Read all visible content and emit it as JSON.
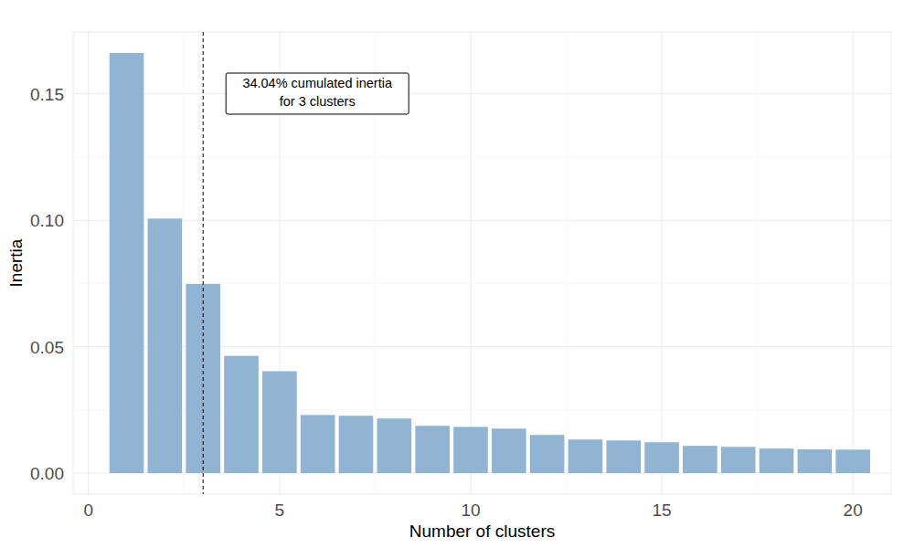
{
  "chart_data": {
    "type": "bar",
    "x_label": "Number of clusters",
    "y_label": "Inertia",
    "x": [
      1,
      2,
      3,
      4,
      5,
      6,
      7,
      8,
      9,
      10,
      11,
      12,
      13,
      14,
      15,
      16,
      17,
      18,
      19,
      20
    ],
    "values": [
      0.1662,
      0.1007,
      0.0748,
      0.0464,
      0.0403,
      0.023,
      0.0227,
      0.0216,
      0.0187,
      0.0183,
      0.0176,
      0.0151,
      0.0133,
      0.0129,
      0.0122,
      0.0108,
      0.0104,
      0.0097,
      0.0094,
      0.0093
    ],
    "color": "#90b4d2",
    "xlim": [
      -0.4,
      21.0
    ],
    "xticks": [
      0,
      5,
      10,
      15,
      20
    ],
    "ylim": [
      -0.0083,
      0.1745
    ],
    "yticks": [
      {
        "value": 0,
        "label": "0.00"
      },
      {
        "value": 0.05,
        "label": "0.05"
      },
      {
        "value": 0.1,
        "label": "0.10"
      },
      {
        "value": 0.15,
        "label": "0.15"
      }
    ],
    "grid": true,
    "vline_x": 3,
    "annotation": [
      "34.04% cumulated inertia",
      "for 3 clusters"
    ]
  }
}
